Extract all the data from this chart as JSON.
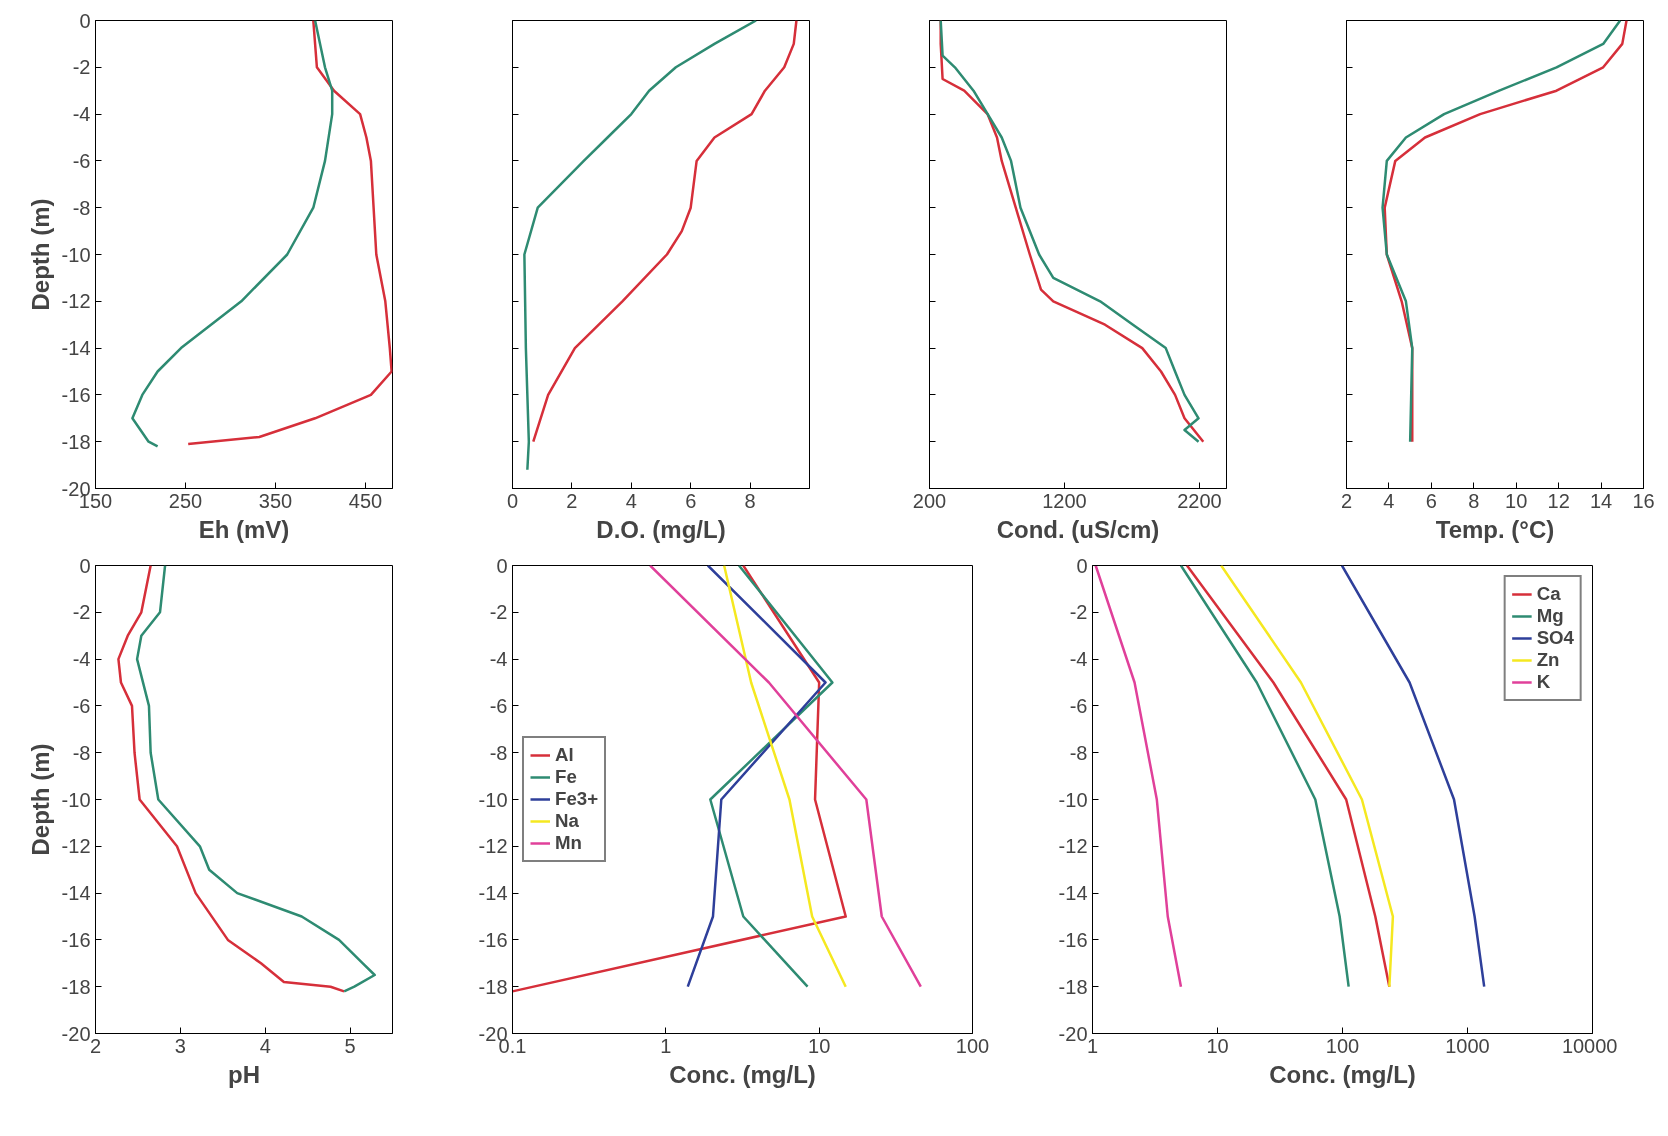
{
  "chart_data": [
    {
      "type": "line",
      "xlabel": "Eh (mV)",
      "ylabel": "Depth (m)",
      "xlim": [
        150,
        480
      ],
      "xticks": [
        150,
        250,
        350,
        450
      ],
      "ylim": [
        -20,
        0
      ],
      "yticks": [
        0,
        -2,
        -4,
        -6,
        -8,
        -10,
        -12,
        -14,
        -16,
        -18,
        -20
      ],
      "grid": false,
      "line_style": "solid",
      "series": [
        {
          "color": "#d62f3a",
          "x": [
            392,
            396,
            415,
            444,
            451,
            456,
            459,
            462,
            472,
            477,
            479,
            456,
            394,
            332,
            253
          ],
          "values": [
            0,
            -2,
            -3,
            -4,
            -5,
            -6,
            -8,
            -10,
            -12,
            -14,
            -15,
            -16,
            -17,
            -17.8,
            -18.1
          ]
        },
        {
          "color": "#2e8b72",
          "x": [
            394,
            405,
            413,
            413,
            405,
            392,
            363,
            312,
            245,
            219,
            202,
            191,
            209,
            219
          ],
          "values": [
            0,
            -2,
            -3,
            -4,
            -6,
            -8,
            -10,
            -12,
            -14,
            -15,
            -16,
            -17,
            -18,
            -18.2
          ]
        }
      ]
    },
    {
      "type": "line",
      "xlabel": "D.O. (mg/L)",
      "xlim": [
        0,
        10
      ],
      "xticks": [
        0,
        2,
        4,
        6,
        8
      ],
      "ylim": [
        -20,
        0
      ],
      "yticks": [
        0,
        -2,
        -4,
        -6,
        -8,
        -10,
        -12,
        -14,
        -16,
        -18,
        -20
      ],
      "tick_labels": "x",
      "grid": false,
      "line_style": "solid",
      "series": [
        {
          "color": "#d62f3a",
          "x": [
            9.56,
            9.47,
            9.15,
            8.5,
            8.05,
            6.8,
            6.2,
            6.0,
            5.7,
            5.2,
            3.7,
            2.1,
            1.2,
            0.7
          ],
          "values": [
            0,
            -1,
            -2,
            -3,
            -4,
            -5,
            -6,
            -8,
            -9,
            -10,
            -12,
            -14,
            -16,
            -18
          ]
        },
        {
          "color": "#2e8b72",
          "x": [
            8.2,
            6.8,
            5.5,
            4.6,
            4.0,
            3.2,
            2.4,
            0.85,
            0.4,
            0.45,
            0.55,
            0.5
          ],
          "values": [
            0,
            -1,
            -2,
            -3,
            -4,
            -5,
            -6,
            -8,
            -10,
            -14,
            -18,
            -19.2
          ]
        }
      ]
    },
    {
      "type": "line",
      "xlabel": "Cond. (uS/cm)",
      "xlim": [
        200,
        2400
      ],
      "xticks": [
        200,
        1200,
        2200
      ],
      "ylim": [
        -20,
        0
      ],
      "yticks": [
        0,
        -2,
        -4,
        -6,
        -8,
        -10,
        -12,
        -14,
        -16,
        -18,
        -20
      ],
      "tick_labels": "x",
      "grid": false,
      "line_style": "solid",
      "series": [
        {
          "color": "#d62f3a",
          "x": [
            283,
            283,
            297,
            457,
            630,
            700,
            735,
            839,
            943,
            1026,
            1117,
            1500,
            1776,
            1915,
            2019,
            2089,
            2228
          ],
          "values": [
            0,
            -1,
            -2.5,
            -3,
            -4,
            -5,
            -6,
            -8,
            -10,
            -11.5,
            -12,
            -13,
            -14,
            -15,
            -16,
            -17,
            -18
          ]
        },
        {
          "color": "#2e8b72",
          "x": [
            283,
            297,
            388,
            526,
            735,
            804,
            874,
            1012,
            1117,
            1464,
            1707,
            1950,
            2019,
            2089,
            2193,
            2089,
            2193
          ],
          "values": [
            0,
            -1.5,
            -2,
            -3,
            -5,
            -6,
            -8,
            -10,
            -11,
            -12,
            -13,
            -14,
            -15,
            -16,
            -17,
            -17.5,
            -18
          ]
        }
      ]
    },
    {
      "type": "line",
      "xlabel": "Temp. (°C)",
      "xlim": [
        2,
        16
      ],
      "xticks": [
        2,
        4,
        6,
        8,
        10,
        12,
        14,
        16
      ],
      "ylim": [
        -20,
        0
      ],
      "yticks": [
        0,
        -2,
        -4,
        -6,
        -8,
        -10,
        -12,
        -14,
        -16,
        -18,
        -20
      ],
      "tick_labels": "x",
      "grid": false,
      "line_style": "solid",
      "series": [
        {
          "color": "#d62f3a",
          "x": [
            15.2,
            15.0,
            14.1,
            11.9,
            8.3,
            5.7,
            4.3,
            3.8,
            3.9,
            4.6,
            5.1,
            5.1
          ],
          "values": [
            0,
            -1,
            -2,
            -3,
            -4,
            -5,
            -6,
            -8,
            -10,
            -12,
            -14,
            -18
          ]
        },
        {
          "color": "#2e8b72",
          "x": [
            14.9,
            14.1,
            11.9,
            9.2,
            6.6,
            4.8,
            3.9,
            3.7,
            3.9,
            4.8,
            5.1,
            5.0
          ],
          "values": [
            0,
            -1,
            -2,
            -3,
            -4,
            -5,
            -6,
            -8,
            -10,
            -12,
            -14,
            -18
          ]
        }
      ]
    },
    {
      "type": "line",
      "xlabel": "pH",
      "ylabel": "Depth (m)",
      "xlim": [
        2,
        5.5
      ],
      "xticks": [
        2,
        3,
        4,
        5
      ],
      "ylim": [
        -20,
        0
      ],
      "yticks": [
        0,
        -2,
        -4,
        -6,
        -8,
        -10,
        -12,
        -14,
        -16,
        -18,
        -20
      ],
      "grid": false,
      "line_style": "solid",
      "series": [
        {
          "color": "#d62f3a",
          "x": [
            2.65,
            2.54,
            2.38,
            2.27,
            2.3,
            2.43,
            2.46,
            2.52,
            2.96,
            3.18,
            3.56,
            3.95,
            4.22,
            4.77,
            4.93
          ],
          "values": [
            0,
            -2,
            -3,
            -4,
            -5,
            -6,
            -8,
            -10,
            -12,
            -14,
            -16,
            -17,
            -17.8,
            -18,
            -18.2
          ]
        },
        {
          "color": "#2e8b72",
          "x": [
            2.82,
            2.76,
            2.54,
            2.49,
            2.63,
            2.65,
            2.74,
            3.23,
            3.34,
            3.67,
            4.43,
            4.87,
            5.15,
            5.29,
            5.05,
            4.93
          ],
          "values": [
            0,
            -2,
            -3,
            -4,
            -6,
            -8,
            -10,
            -12,
            -13,
            -14,
            -15,
            -16,
            -17,
            -17.5,
            -18,
            -18.2
          ]
        }
      ]
    },
    {
      "type": "line",
      "xlabel": "Conc. (mg/L)",
      "log": "x",
      "xlim": [
        0.1,
        100
      ],
      "xticks": [
        0.1,
        1,
        10,
        100
      ],
      "ylim": [
        -20,
        0
      ],
      "yticks": [
        0,
        -2,
        -4,
        -6,
        -8,
        -10,
        -12,
        -14,
        -16,
        -18,
        -20
      ],
      "grid": false,
      "legend": "center left",
      "line_style": "solid",
      "series": [
        {
          "name": "Al",
          "color": "#d62f3a",
          "x": [
            3.2,
            10,
            9.4,
            14.9,
            0.1
          ],
          "values": [
            0,
            -5,
            -10,
            -15,
            -18.2
          ]
        },
        {
          "name": "Fe",
          "color": "#2e8b72",
          "x": [
            3.0,
            12.2,
            1.95,
            3.2,
            8.4
          ],
          "values": [
            0,
            -5,
            -10,
            -15,
            -18
          ]
        },
        {
          "name": "Fe3+",
          "color": "#2e3f9a",
          "x": [
            1.88,
            11,
            2.3,
            2.03,
            1.39
          ],
          "values": [
            0,
            -5,
            -10,
            -15,
            -18
          ]
        },
        {
          "name": "Na",
          "color": "#f5e820",
          "x": [
            2.4,
            3.6,
            6.4,
            9.0,
            14.9
          ],
          "values": [
            0,
            -5,
            -10,
            -15,
            -18
          ]
        },
        {
          "name": "Mn",
          "color": "#e0409a",
          "x": [
            0.79,
            4.7,
            20.3,
            25.6,
            46
          ],
          "values": [
            0,
            -5,
            -10,
            -15,
            -18
          ]
        }
      ]
    },
    {
      "type": "line",
      "xlabel": "Conc. (mg/L)",
      "log": "x",
      "xlim": [
        1,
        10000
      ],
      "xticks": [
        1,
        10,
        100,
        1000,
        10000
      ],
      "ylim": [
        -20,
        0
      ],
      "yticks": [
        0,
        -2,
        -4,
        -6,
        -8,
        -10,
        -12,
        -14,
        -16,
        -18,
        -20
      ],
      "grid": false,
      "legend": "top right",
      "line_style": "solid",
      "series": [
        {
          "name": "Ca",
          "color": "#d62f3a",
          "x": [
            5.7,
            28,
            107,
            183,
            237
          ],
          "values": [
            0,
            -5,
            -10,
            -15,
            -18
          ]
        },
        {
          "name": "Mg",
          "color": "#2e8b72",
          "x": [
            5.1,
            20.6,
            60.6,
            94.9,
            112
          ],
          "values": [
            0,
            -5,
            -10,
            -15,
            -18
          ]
        },
        {
          "name": "SO4",
          "color": "#2e3f9a",
          "x": [
            99,
            344,
            780,
            1140,
            1360
          ],
          "values": [
            0,
            -5,
            -10,
            -15,
            -18
          ]
        },
        {
          "name": "Zn",
          "color": "#f5e820",
          "x": [
            10.7,
            46.5,
            143,
            253,
            237
          ],
          "values": [
            0,
            -5,
            -10,
            -15,
            -18
          ]
        },
        {
          "name": "K",
          "color": "#e0409a",
          "x": [
            1.06,
            2.17,
            3.27,
            4.0,
            5.1
          ],
          "values": [
            0,
            -5,
            -10,
            -15,
            -18
          ]
        }
      ]
    }
  ]
}
